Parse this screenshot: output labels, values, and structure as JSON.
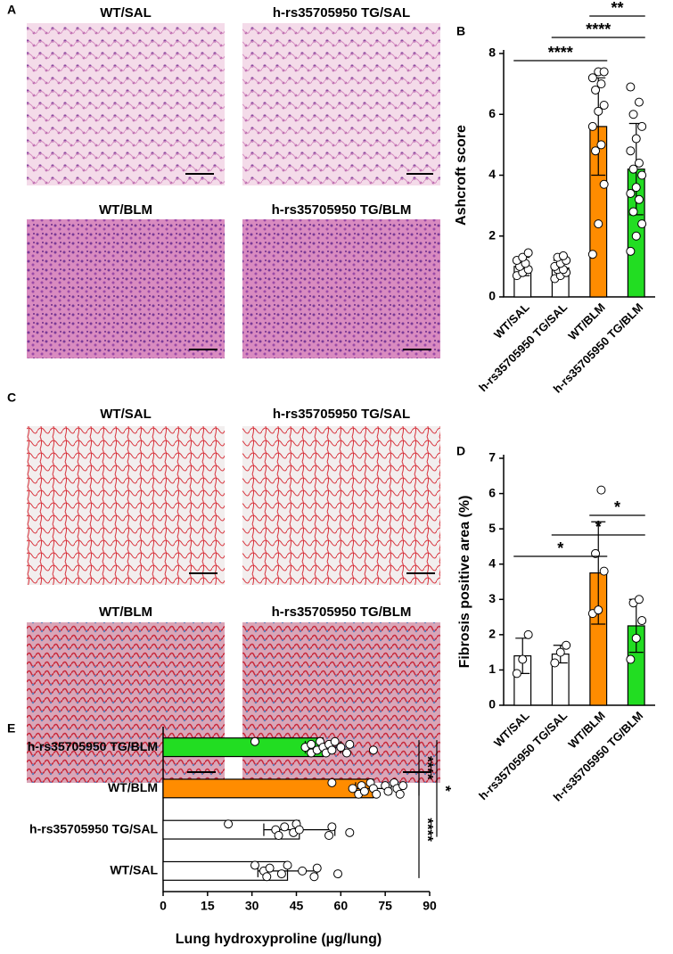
{
  "panel_labels": [
    "A",
    "B",
    "C",
    "D",
    "E"
  ],
  "micrographs": {
    "A": [
      "WT/SAL",
      "h-rs35705950 TG/SAL",
      "WT/BLM",
      "h-rs35705950 TG/BLM"
    ],
    "C": [
      "WT/SAL",
      "h-rs35705950 TG/SAL",
      "WT/BLM",
      "h-rs35705950 TG/BLM"
    ]
  },
  "chart_data": [
    {
      "type": "bar",
      "ylabel": "Ashcroft score",
      "categories": [
        "WT/SAL",
        "h-rs35705950 TG/SAL",
        "WT/BLM",
        "h-rs35705950 TG/BLM"
      ],
      "values": [
        1.0,
        0.95,
        5.6,
        4.2
      ],
      "errors": [
        0.3,
        0.25,
        1.6,
        1.5
      ],
      "colors": [
        "#ffffff",
        "#ffffff",
        "#ff8c00",
        "#22dd22"
      ],
      "points": [
        [
          0.7,
          0.8,
          0.9,
          1.0,
          1.1,
          1.2,
          1.3,
          1.45
        ],
        [
          0.6,
          0.7,
          0.8,
          0.9,
          0.9,
          1.0,
          1.1,
          1.2,
          1.3,
          1.35
        ],
        [
          1.4,
          2.4,
          3.7,
          4.8,
          5.0,
          5.6,
          6.1,
          6.3,
          6.8,
          7.0,
          7.2,
          7.4,
          7.4
        ],
        [
          1.5,
          2.0,
          2.4,
          2.8,
          3.2,
          3.4,
          3.6,
          4.0,
          4.2,
          4.4,
          4.8,
          5.2,
          5.6,
          6.0,
          6.4,
          6.9
        ]
      ],
      "ylim": [
        0,
        8
      ],
      "yticks": [
        0,
        2,
        4,
        6,
        8
      ],
      "annotations": [
        "****",
        "****",
        "**"
      ]
    },
    {
      "type": "bar",
      "ylabel": "Fibrosis positive area (%)",
      "categories": [
        "WT/SAL",
        "h-rs35705950 TG/SAL",
        "WT/BLM",
        "h-rs35705950 TG/BLM"
      ],
      "values": [
        1.4,
        1.45,
        3.75,
        2.25
      ],
      "errors": [
        0.5,
        0.25,
        1.45,
        0.75
      ],
      "colors": [
        "#ffffff",
        "#ffffff",
        "#ff8c00",
        "#22dd22"
      ],
      "points": [
        [
          0.9,
          1.3,
          2.0
        ],
        [
          1.2,
          1.5,
          1.7
        ],
        [
          2.6,
          2.7,
          3.8,
          4.3,
          6.1
        ],
        [
          1.3,
          1.9,
          2.4,
          2.9,
          3.0
        ]
      ],
      "ylim": [
        0,
        7
      ],
      "yticks": [
        0,
        1,
        2,
        3,
        4,
        5,
        6,
        7
      ],
      "annotations": [
        "*",
        "*",
        "*"
      ]
    },
    {
      "type": "barh",
      "xlabel": "Lung hydroxyproline (µg/lung)",
      "categories": [
        "h-rs35705950 TG/BLM",
        "WT/BLM",
        "h-rs35705950 TG/SAL",
        "WT/SAL"
      ],
      "values": [
        54,
        71,
        46,
        42
      ],
      "errors": [
        6,
        6,
        12,
        10
      ],
      "colors": [
        "#22dd22",
        "#ff8c00",
        "#ffffff",
        "#ffffff"
      ],
      "points": [
        [
          31,
          48,
          50,
          50,
          52,
          53,
          54,
          55,
          56,
          57,
          58,
          60,
          62,
          63,
          71
        ],
        [
          57,
          64,
          66,
          67,
          68,
          70,
          71,
          72,
          75,
          76,
          78,
          79,
          80,
          81
        ],
        [
          22,
          38,
          39,
          41,
          44,
          45,
          46,
          56,
          57,
          63
        ],
        [
          31,
          34,
          35,
          36,
          40,
          42,
          47,
          51,
          52,
          59
        ]
      ],
      "xlim": [
        0,
        90
      ],
      "xticks": [
        0,
        15,
        30,
        45,
        60,
        75,
        90
      ],
      "annotations": [
        "****",
        "*",
        "****"
      ]
    }
  ]
}
